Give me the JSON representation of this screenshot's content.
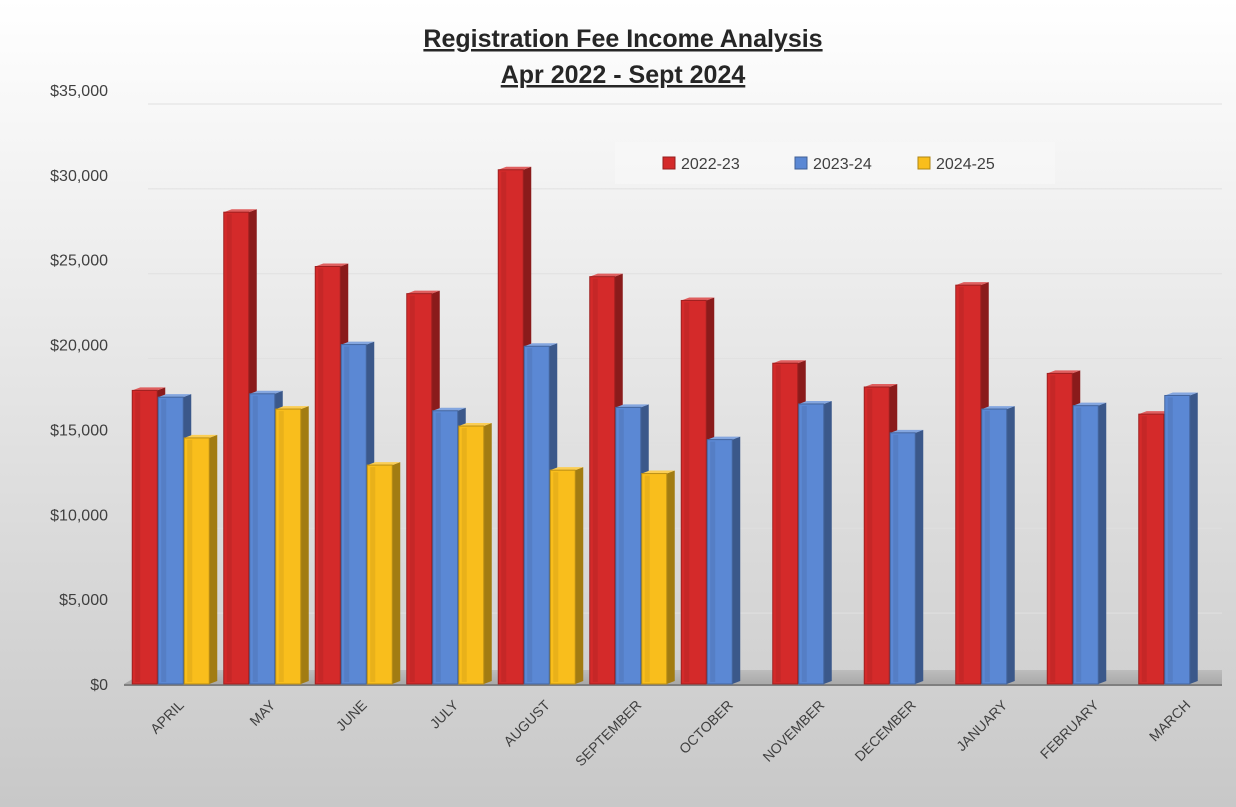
{
  "chart_data": {
    "type": "bar",
    "title": "Registration Fee Income Analysis",
    "subtitle": "Apr 2022 - Sept 2024",
    "categories": [
      "APRIL",
      "MAY",
      "JUNE",
      "JULY",
      "AUGUST",
      "SEPTEMBER",
      "OCTOBER",
      "NOVEMBER",
      "DECEMBER",
      "JANUARY",
      "FEBRUARY",
      "MARCH"
    ],
    "series": [
      {
        "name": "2022-23",
        "color": "#d42a2a",
        "values": [
          17300,
          27800,
          24600,
          23000,
          30300,
          24000,
          22600,
          18900,
          17500,
          23500,
          18300,
          15900
        ]
      },
      {
        "name": "2023-24",
        "color": "#5b88d4",
        "values": [
          16900,
          17100,
          20000,
          16100,
          19900,
          16300,
          14400,
          16500,
          14800,
          16200,
          16400,
          17000
        ]
      },
      {
        "name": "2024-25",
        "color": "#f9be1c",
        "values": [
          14500,
          16200,
          12900,
          15200,
          12600,
          12400,
          null,
          null,
          null,
          null,
          null,
          null
        ]
      }
    ],
    "y_ticks": [
      "$0",
      "$5,000",
      "$10,000",
      "$15,000",
      "$20,000",
      "$25,000",
      "$30,000",
      "$35,000"
    ],
    "ylim": [
      0,
      35000
    ],
    "xlabel": "",
    "ylabel": "",
    "grid": true,
    "legend_position": "top-right"
  }
}
